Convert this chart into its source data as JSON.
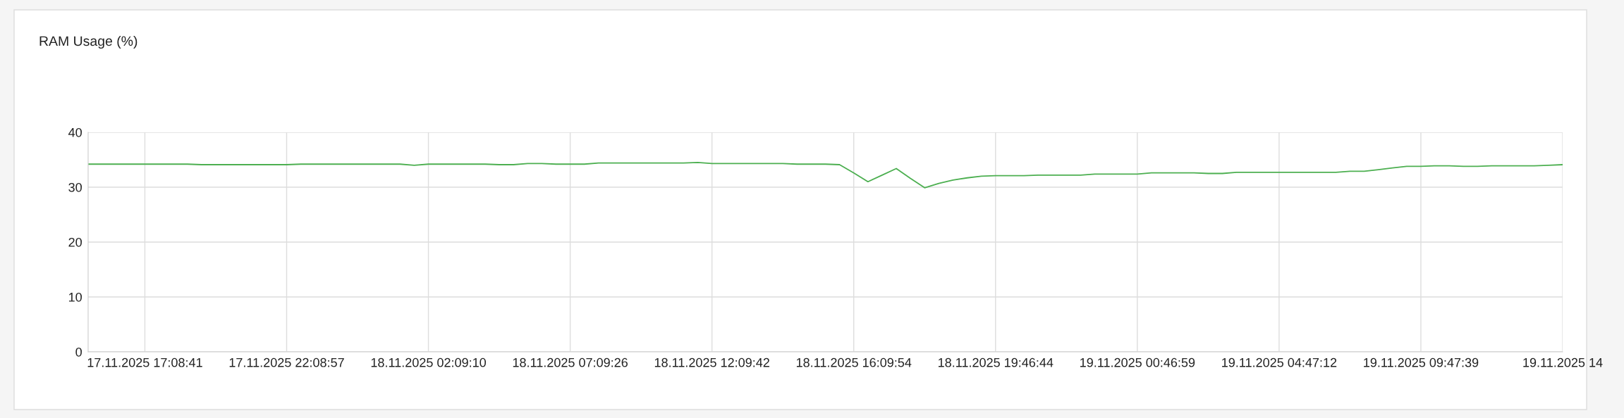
{
  "chart_data": {
    "type": "line",
    "title": "RAM Usage (%)",
    "categories": [
      null,
      null,
      null,
      null,
      "17.11.2025 17:08:41",
      null,
      null,
      null,
      null,
      null,
      null,
      null,
      null,
      null,
      "17.11.2025 22:08:57",
      null,
      null,
      null,
      null,
      null,
      null,
      null,
      null,
      null,
      "18.11.2025 02:09:10",
      null,
      null,
      null,
      null,
      null,
      null,
      null,
      null,
      null,
      "18.11.2025 07:09:26",
      null,
      null,
      null,
      null,
      null,
      null,
      null,
      null,
      null,
      "18.11.2025 12:09:42",
      null,
      null,
      null,
      null,
      null,
      null,
      null,
      null,
      null,
      "18.11.2025 16:09:54",
      null,
      null,
      null,
      null,
      null,
      null,
      null,
      null,
      null,
      "18.11.2025 19:46:44",
      null,
      null,
      null,
      null,
      null,
      null,
      null,
      null,
      null,
      "19.11.2025 00:46:59",
      null,
      null,
      null,
      null,
      null,
      null,
      null,
      null,
      null,
      "19.11.2025 04:47:12",
      null,
      null,
      null,
      null,
      null,
      null,
      null,
      null,
      null,
      "19.11.2025 09:47:39",
      null,
      null,
      null,
      null,
      null,
      null,
      null,
      null,
      null,
      "19.11.2025 14"
    ],
    "series": [
      {
        "color": "#4caf50",
        "values": [
          34.2,
          34.2,
          34.2,
          34.2,
          34.2,
          34.2,
          34.2,
          34.2,
          34.1,
          34.1,
          34.1,
          34.1,
          34.1,
          34.1,
          34.1,
          34.2,
          34.2,
          34.2,
          34.2,
          34.2,
          34.2,
          34.2,
          34.2,
          34.0,
          34.2,
          34.2,
          34.2,
          34.2,
          34.2,
          34.1,
          34.1,
          34.3,
          34.3,
          34.2,
          34.2,
          34.2,
          34.4,
          34.4,
          34.4,
          34.4,
          34.4,
          34.4,
          34.4,
          34.5,
          34.3,
          34.3,
          34.3,
          34.3,
          34.3,
          34.3,
          34.2,
          34.2,
          34.2,
          34.1,
          32.6,
          31.0,
          32.2,
          33.4,
          31.6,
          29.9,
          30.7,
          31.3,
          31.7,
          32.0,
          32.1,
          32.1,
          32.1,
          32.2,
          32.2,
          32.2,
          32.2,
          32.4,
          32.4,
          32.4,
          32.4,
          32.6,
          32.6,
          32.6,
          32.6,
          32.5,
          32.5,
          32.7,
          32.7,
          32.7,
          32.7,
          32.7,
          32.7,
          32.7,
          32.7,
          32.9,
          32.9,
          33.2,
          33.5,
          33.8,
          33.8,
          33.9,
          33.9,
          33.8,
          33.8,
          33.9,
          33.9,
          33.9,
          33.9,
          34.0,
          34.1
        ]
      }
    ],
    "ylim": [
      0,
      40
    ],
    "yticks": [
      0,
      10,
      20,
      30,
      40
    ],
    "grid": true,
    "legend": false,
    "marker": "none",
    "line_style": "solid"
  }
}
